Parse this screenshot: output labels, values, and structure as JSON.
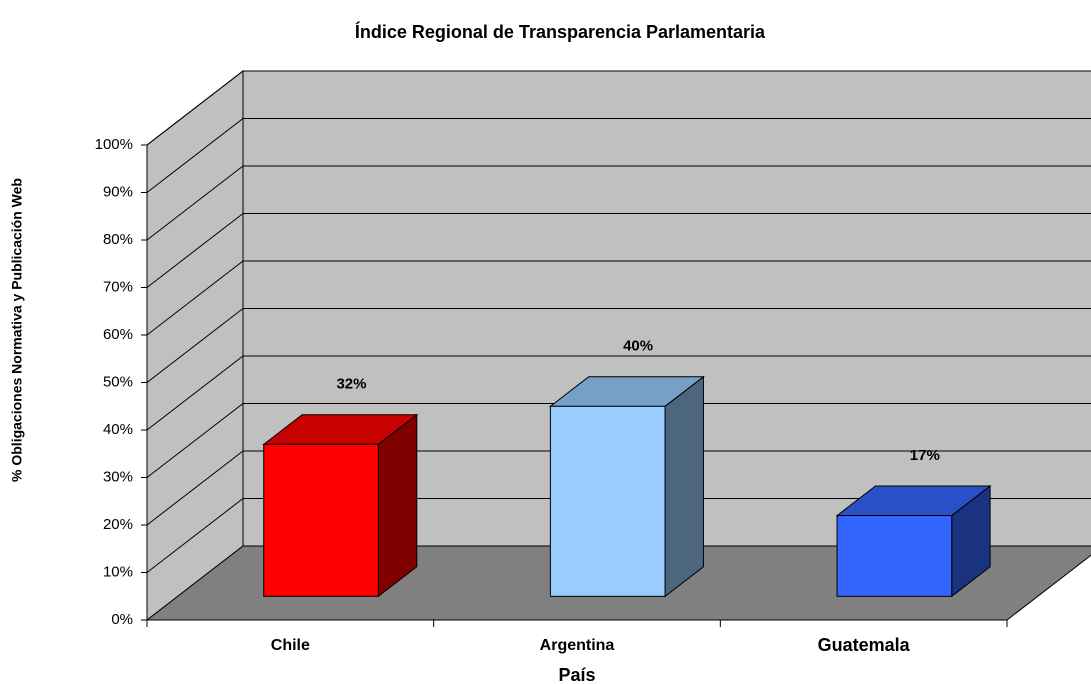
{
  "chart_data": {
    "type": "bar3d",
    "title": "Índice Regional de Transparencia Parlamentaria",
    "y_label": "% Obligaciones Normativa y Publicación Web",
    "x_label": "País",
    "categories": [
      "Chile",
      "Argentina",
      "Guatemala"
    ],
    "values": [
      32,
      40,
      17
    ],
    "value_labels": [
      "32%",
      "40%",
      "17%"
    ],
    "colors": [
      "#ff0000",
      "#99ccff",
      "#3366ff"
    ],
    "ylim": [
      0,
      100
    ],
    "yticks": [
      {
        "value": 0,
        "label": "0%"
      },
      {
        "value": 10,
        "label": "10%"
      },
      {
        "value": 20,
        "label": "20%"
      },
      {
        "value": 30,
        "label": "30%"
      },
      {
        "value": 40,
        "label": "40%"
      },
      {
        "value": 50,
        "label": "50%"
      },
      {
        "value": 60,
        "label": "60%"
      },
      {
        "value": 70,
        "label": "70%"
      },
      {
        "value": 80,
        "label": "80%"
      },
      {
        "value": 90,
        "label": "90%"
      },
      {
        "value": 100,
        "label": "100%"
      }
    ],
    "grid": true
  }
}
